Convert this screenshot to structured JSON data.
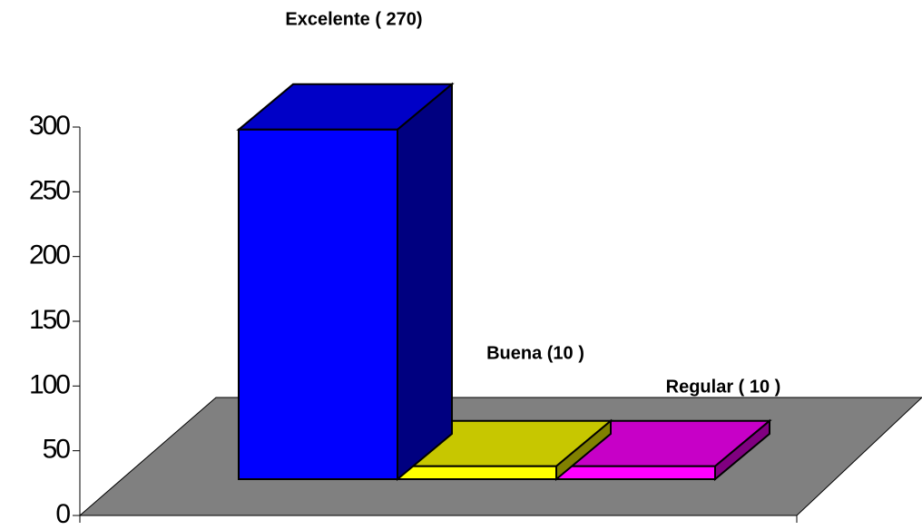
{
  "chart_data": {
    "type": "bar3d",
    "values": [
      270,
      10,
      10
    ],
    "value_labels": [
      "Excelente ( 270)",
      "Buena (10 )",
      "Regular ( 10 )"
    ],
    "colors": [
      "#0000ff",
      "#ffff00",
      "#ff00ff"
    ],
    "ylim": [
      0,
      300
    ],
    "yticks": [
      0,
      50,
      100,
      150,
      200,
      250,
      300
    ]
  }
}
